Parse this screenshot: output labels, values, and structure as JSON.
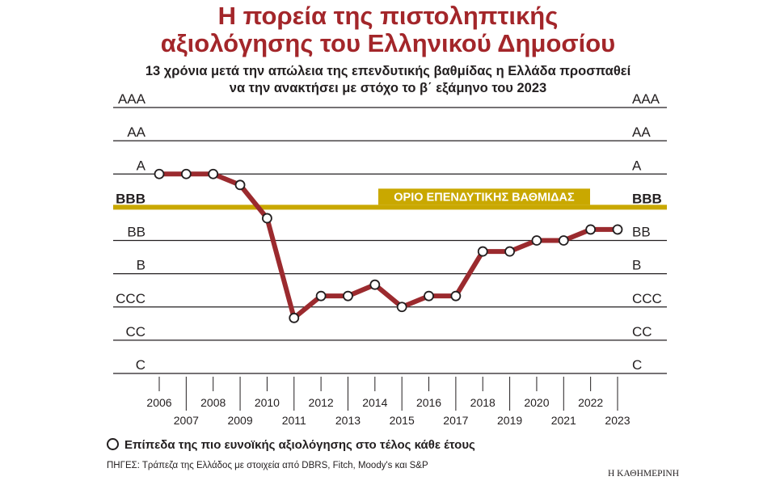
{
  "header": {
    "title_line1": "Η πορεία της πιστοληπτικής",
    "title_line2": "αξιολόγησης του Ελληνικού Δημοσίου",
    "subtitle_line1": "13 χρόνια μετά την απώλεια της επενδυτικής βαθμίδας η Ελλάδα προσπαθεί",
    "subtitle_line2": "να την ανακτήσει με στόχο το β΄ εξάμηνο του 2023"
  },
  "chart_data": {
    "type": "line",
    "title": "",
    "xlabel": "",
    "ylabel": "",
    "y_categories": [
      "C",
      "CC",
      "CCC",
      "B",
      "BB",
      "BBB",
      "A",
      "AA",
      "AAA"
    ],
    "x": [
      2006,
      2007,
      2008,
      2009,
      2010,
      2011,
      2012,
      2013,
      2014,
      2015,
      2016,
      2017,
      2018,
      2019,
      2020,
      2021,
      2022,
      2023
    ],
    "x_tick_labels": [
      "2006",
      "2007",
      "2008",
      "2009",
      "2010",
      "2011",
      "2012",
      "2013",
      "2014",
      "2015",
      "2016",
      "2017",
      "2018",
      "2019",
      "2020",
      "2021",
      "2022",
      "2023"
    ],
    "series": [
      {
        "values": [
          "A",
          "A",
          "A",
          "A-",
          "BBB-",
          "CCC-",
          "CCC+",
          "CCC+",
          "B-",
          "CCC",
          "CCC+",
          "CCC+",
          "BB-",
          "BB-",
          "BB",
          "BB",
          "BB+",
          "BB+"
        ],
        "numeric_values": [
          7.0,
          7.0,
          7.0,
          6.67,
          5.67,
          2.67,
          3.33,
          3.33,
          3.67,
          3.0,
          3.33,
          3.33,
          4.67,
          4.67,
          5.0,
          5.0,
          5.33,
          5.33
        ],
        "color": "#9b2a2e"
      }
    ],
    "threshold": {
      "label": "ΟΡΙΟ ΕΠΕΝΔΥΤΙΚΗΣ ΒΑΘΜΙΔΑΣ",
      "level": "BBB",
      "color": "#c9a800"
    },
    "ylim": [
      1,
      9
    ],
    "grid": true,
    "legend": "bottom-left"
  },
  "legend": {
    "label": "Επίπεδα της πιο ευνοϊκής αξιολόγησης στο τέλος κάθε έτους"
  },
  "footer": {
    "sources": "ΠΗΓΕΣ: Τράπεζα της Ελλάδος με στοιχεία από DBRS, Fitch, Moody's και S&P",
    "brand": "Η ΚΑΘΗΜΕΡΙΝΗ"
  }
}
